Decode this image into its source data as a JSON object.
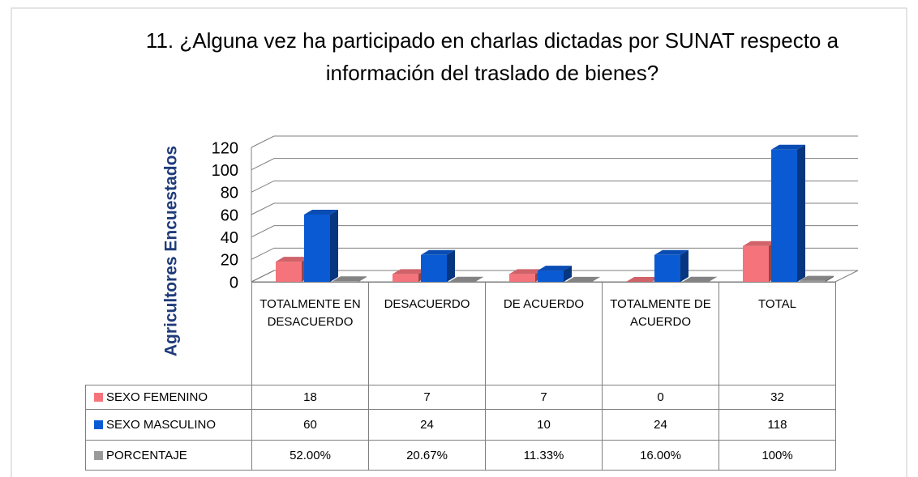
{
  "chart_data": {
    "type": "bar3d",
    "title": "11. ¿Alguna vez ha participado en charlas dictadas por SUNAT respecto  a información del traslado de bienes?",
    "y_label": "Agricultores Encuestados",
    "categories": [
      "TOTALMENTE EN DESACUERDO",
      "DESACUERDO",
      "DE ACUERDO",
      "TOTALMENTE DE ACUERDO",
      "TOTAL"
    ],
    "series": [
      {
        "name": "SEXO FEMENINO",
        "color": "#f5747b",
        "values": [
          18,
          7,
          7,
          0,
          32
        ]
      },
      {
        "name": "SEXO MASCULINO",
        "color": "#0a5ad4",
        "values": [
          60,
          24,
          10,
          24,
          118
        ]
      },
      {
        "name": "PORCENTAJE",
        "color": "#9a9a9a",
        "values": [
          0.52,
          0.2067,
          0.1133,
          0.16,
          1
        ],
        "value_labels": [
          "52.00%",
          "20.67%",
          "11.33%",
          "16.00%",
          "100%"
        ]
      }
    ],
    "ylim": [
      0,
      120
    ],
    "yticks": [
      0,
      20,
      40,
      60,
      80,
      100,
      120
    ],
    "grid": true
  }
}
